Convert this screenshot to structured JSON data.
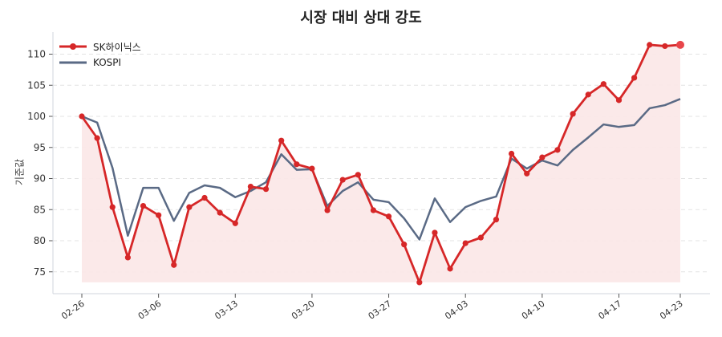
{
  "chart_data": {
    "type": "line",
    "title": "시장 대비 상대 강도",
    "xlabel": "",
    "ylabel": "기준값",
    "ylim": [
      72,
      113
    ],
    "yticks": [
      75,
      80,
      85,
      90,
      95,
      100,
      105,
      110
    ],
    "x_tick_labels": [
      {
        "index": 0,
        "label": "02-26"
      },
      {
        "index": 5,
        "label": "03-06"
      },
      {
        "index": 10,
        "label": "03-13"
      },
      {
        "index": 15,
        "label": "03-20"
      },
      {
        "index": 20,
        "label": "03-27"
      },
      {
        "index": 25,
        "label": "04-03"
      },
      {
        "index": 30,
        "label": "04-10"
      },
      {
        "index": 35,
        "label": "04-17"
      },
      {
        "index": 39,
        "label": "04-23"
      }
    ],
    "grid": "horizontal dashed",
    "legend_position": "upper left",
    "series": [
      {
        "name": "SK하이닉스",
        "color": "#d62728",
        "marker": "circle",
        "fill": true,
        "fill_color": "#fbe7e7",
        "values": [
          100.0,
          96.5,
          85.4,
          77.3,
          85.6,
          84.1,
          76.1,
          85.4,
          86.9,
          84.5,
          82.8,
          88.7,
          88.3,
          96.1,
          92.3,
          91.6,
          84.9,
          89.8,
          90.6,
          84.9,
          83.9,
          79.4,
          73.3,
          81.3,
          75.5,
          79.6,
          80.5,
          83.4,
          94.0,
          90.8,
          93.4,
          94.6,
          100.4,
          103.5,
          105.2,
          102.6,
          106.2,
          111.5,
          111.3,
          111.5
        ]
      },
      {
        "name": "KOSPI",
        "color": "#5a6a85",
        "marker": "none",
        "fill": false,
        "values": [
          100.0,
          99.0,
          91.7,
          80.8,
          88.5,
          88.5,
          83.2,
          87.7,
          88.9,
          88.5,
          87.0,
          88.0,
          89.4,
          93.9,
          91.4,
          91.5,
          85.6,
          88.0,
          89.4,
          86.6,
          86.2,
          83.6,
          80.2,
          86.8,
          83.0,
          85.4,
          86.4,
          87.1,
          93.2,
          91.6,
          92.9,
          92.1,
          94.6,
          96.6,
          98.7,
          98.3,
          98.6,
          101.3,
          101.8,
          102.8
        ]
      }
    ]
  }
}
